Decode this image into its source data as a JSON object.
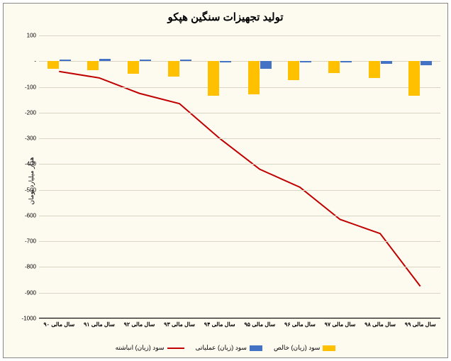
{
  "chart": {
    "type": "bar+line",
    "title": "تولید تجهیزات سنگین هپکو",
    "title_fontsize": 15,
    "y_axis_title": "هزار میلیارد تومان",
    "background_color": "#fdfaf0",
    "border_color": "#888888",
    "grid_color": "#d9d4c4",
    "yaxis": {
      "min": -1000,
      "max": 100,
      "step": 100,
      "label_fontsize": 8
    },
    "categories": [
      "سال مالی ۹۰",
      "سال مالی ۹۱",
      "سال مالی ۹۲",
      "سال مالی ۹۳",
      "سال مالی ۹۴",
      "سال مالی ۹۵",
      "سال مالی ۹۶",
      "سال مالی ۹۷",
      "سال مالی ۹۸",
      "سال مالی ۹۹"
    ],
    "category_label_fontsize": 8,
    "series": {
      "net_profit": {
        "label": "سود (زیان) خالص",
        "color": "#ffc000",
        "type": "bar",
        "bar_width_frac": 0.28,
        "values": [
          -30,
          -35,
          -50,
          -60,
          -135,
          -130,
          -75,
          -45,
          -65,
          -135
        ]
      },
      "operating_profit": {
        "label": "سود (زیان) عملیاتی",
        "color": "#4472c4",
        "type": "bar",
        "bar_width_frac": 0.28,
        "values": [
          5,
          10,
          5,
          5,
          -5,
          -30,
          -5,
          -5,
          -10,
          -15
        ]
      },
      "accumulated": {
        "label": "سود (زیان) انباشته",
        "color": "#c00000",
        "type": "line",
        "line_width": 2,
        "values": [
          -40,
          -65,
          -125,
          -165,
          -300,
          -420,
          -490,
          -615,
          -670,
          -875
        ]
      }
    },
    "legend": {
      "items": [
        {
          "key": "net_profit",
          "swatch": "box"
        },
        {
          "key": "operating_profit",
          "swatch": "box"
        },
        {
          "key": "accumulated",
          "swatch": "line"
        }
      ]
    }
  }
}
